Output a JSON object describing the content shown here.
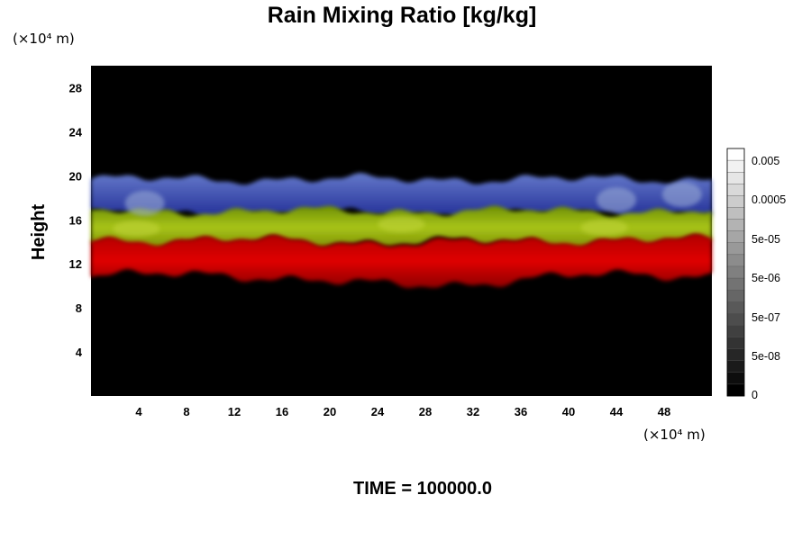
{
  "chart_data": {
    "type": "heatmap",
    "title": "Rain Mixing Ratio [kg/kg]",
    "ylabel": "Height",
    "xlabel": "",
    "x_unit": "(×10⁴ m)",
    "y_unit": "(×10⁴ m)",
    "xlim": [
      0,
      52
    ],
    "ylim": [
      0,
      30
    ],
    "x_ticks": [
      4,
      8,
      12,
      16,
      20,
      24,
      28,
      32,
      36,
      40,
      44,
      48
    ],
    "y_ticks": [
      4,
      8,
      12,
      16,
      20,
      24,
      28
    ],
    "background_color": "#000000",
    "layers": [
      {
        "color": "#2a3db5",
        "y_bottom": 16.5,
        "y_top": 19.7
      },
      {
        "color": "#8fb200",
        "y_bottom": 14.0,
        "y_top": 16.8
      },
      {
        "color": "#d40000",
        "y_bottom": 11.0,
        "y_top": 14.2
      }
    ],
    "colorbar": {
      "labels": [
        "0.005",
        "0.0005",
        "5e-05",
        "5e-06",
        "5e-07",
        "5e-08",
        "0"
      ]
    },
    "time_label": "TIME = 100000.0"
  }
}
